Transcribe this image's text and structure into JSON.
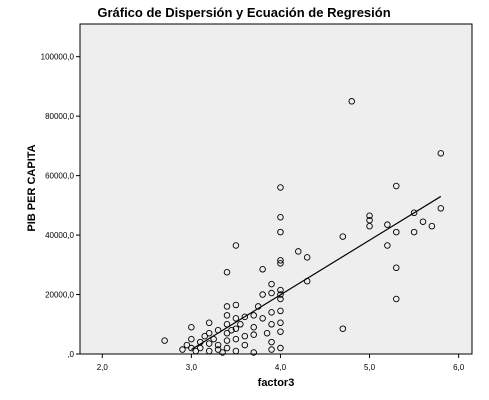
{
  "chart_data": {
    "type": "scatter",
    "title": "Gráfico de Dispersión y Ecuación de Regresión",
    "xlabel": "factor3",
    "ylabel": "PIB PER CAPITA",
    "xlim": [
      1.75,
      6.15
    ],
    "ylim": [
      0,
      111000
    ],
    "x_ticks": [
      2.0,
      3.0,
      4.0,
      5.0,
      6.0
    ],
    "x_tick_labels": [
      "2,0",
      "3,0",
      "4,0",
      "5,0",
      "6,0"
    ],
    "y_ticks": [
      0,
      20000,
      40000,
      60000,
      80000,
      100000
    ],
    "y_tick_labels": [
      ",0",
      "20000,0",
      "40000,0",
      "60000,0",
      "80000,0",
      "100000,0"
    ],
    "grid": false,
    "plot_background": "#eeeeee",
    "marker_color": "#000000",
    "points": [
      [
        2.7,
        4500
      ],
      [
        2.9,
        1500
      ],
      [
        2.95,
        3000
      ],
      [
        3.0,
        9000
      ],
      [
        3.0,
        5000
      ],
      [
        3.0,
        2000
      ],
      [
        3.05,
        1000
      ],
      [
        3.1,
        4000
      ],
      [
        3.1,
        2000
      ],
      [
        3.15,
        6000
      ],
      [
        3.2,
        10500
      ],
      [
        3.2,
        7000
      ],
      [
        3.2,
        3500
      ],
      [
        3.2,
        1000
      ],
      [
        3.25,
        5000
      ],
      [
        3.3,
        8000
      ],
      [
        3.3,
        3000
      ],
      [
        3.3,
        1500
      ],
      [
        3.35,
        500
      ],
      [
        3.4,
        27500
      ],
      [
        3.4,
        16000
      ],
      [
        3.4,
        13000
      ],
      [
        3.4,
        10000
      ],
      [
        3.4,
        7000
      ],
      [
        3.4,
        4500
      ],
      [
        3.4,
        2000
      ],
      [
        3.45,
        8000
      ],
      [
        3.5,
        36500
      ],
      [
        3.5,
        16500
      ],
      [
        3.5,
        12000
      ],
      [
        3.5,
        8500
      ],
      [
        3.5,
        5000
      ],
      [
        3.5,
        1000
      ],
      [
        3.55,
        10000
      ],
      [
        3.6,
        12500
      ],
      [
        3.6,
        6000
      ],
      [
        3.6,
        3000
      ],
      [
        3.7,
        13000
      ],
      [
        3.7,
        9000
      ],
      [
        3.7,
        6500
      ],
      [
        3.7,
        500
      ],
      [
        3.75,
        16000
      ],
      [
        3.8,
        28500
      ],
      [
        3.8,
        20000
      ],
      [
        3.8,
        12000
      ],
      [
        3.85,
        7000
      ],
      [
        3.9,
        23500
      ],
      [
        3.9,
        20500
      ],
      [
        3.9,
        14000
      ],
      [
        3.9,
        10000
      ],
      [
        3.9,
        4000
      ],
      [
        3.9,
        1500
      ],
      [
        4.0,
        56000
      ],
      [
        4.0,
        46000
      ],
      [
        4.0,
        41000
      ],
      [
        4.0,
        31500
      ],
      [
        4.0,
        30500
      ],
      [
        4.0,
        21500
      ],
      [
        4.0,
        20000
      ],
      [
        4.0,
        18500
      ],
      [
        4.0,
        14500
      ],
      [
        4.0,
        10500
      ],
      [
        4.0,
        7500
      ],
      [
        4.0,
        2000
      ],
      [
        4.2,
        34500
      ],
      [
        4.3,
        32500
      ],
      [
        4.3,
        24500
      ],
      [
        4.7,
        39500
      ],
      [
        4.7,
        8500
      ],
      [
        4.8,
        85000
      ],
      [
        5.0,
        46500
      ],
      [
        5.0,
        45000
      ],
      [
        5.0,
        43000
      ],
      [
        5.2,
        43500
      ],
      [
        5.2,
        36500
      ],
      [
        5.3,
        56500
      ],
      [
        5.3,
        41000
      ],
      [
        5.3,
        29000
      ],
      [
        5.3,
        18500
      ],
      [
        5.5,
        47500
      ],
      [
        5.5,
        41000
      ],
      [
        5.6,
        44500
      ],
      [
        5.7,
        43000
      ],
      [
        5.8,
        67500
      ],
      [
        5.8,
        49000
      ]
    ],
    "regression_line": {
      "x": [
        3.0,
        5.8
      ],
      "y": [
        1500,
        53000
      ]
    }
  }
}
